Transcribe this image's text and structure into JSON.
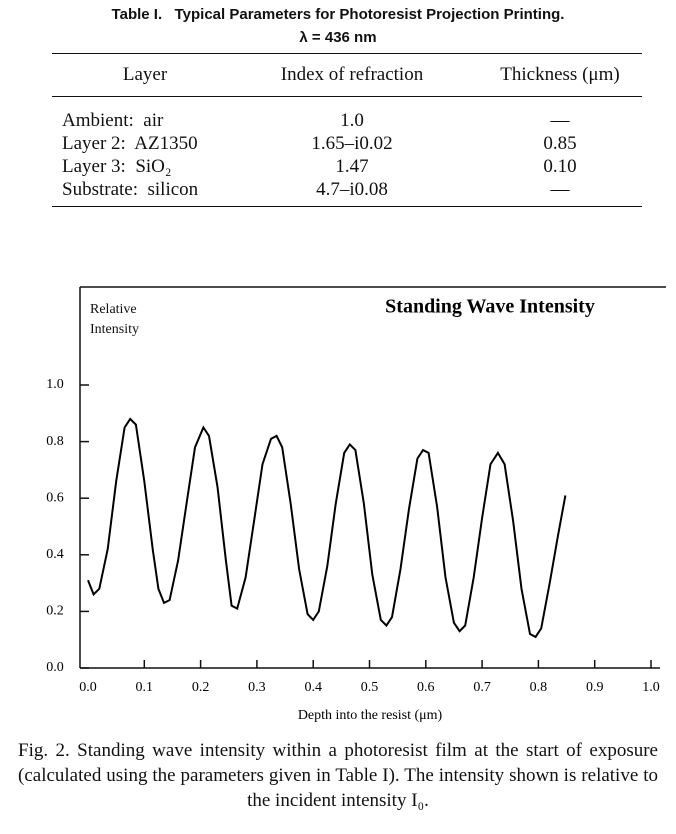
{
  "table": {
    "title": "Table I.   Typical Parameters for Photoresist Projection Printing.",
    "subtitle": "λ = 436 nm",
    "columns": [
      "Layer",
      "Index of refraction",
      "Thickness (μm)"
    ],
    "rows": [
      [
        "Ambient:  air",
        "1.0",
        "—"
      ],
      [
        "Layer 2:  AZ1350",
        "1.65–i0.02",
        "0.85"
      ],
      [
        "Layer 3:  SiO₂",
        "1.47",
        "0.10"
      ],
      [
        "Substrate:  silicon",
        "4.7–i0.08",
        "—"
      ]
    ]
  },
  "chart_data": {
    "type": "line",
    "title": "Standing Wave Intensity",
    "ylabel": "Relative Intensity",
    "xlabel": "Depth into the resist (μm)",
    "color": "#000000",
    "x": [
      0.0,
      0.01,
      0.02,
      0.035,
      0.05,
      0.065,
      0.075,
      0.085,
      0.1,
      0.115,
      0.125,
      0.135,
      0.145,
      0.16,
      0.175,
      0.19,
      0.205,
      0.215,
      0.23,
      0.245,
      0.255,
      0.265,
      0.28,
      0.295,
      0.31,
      0.325,
      0.335,
      0.345,
      0.36,
      0.375,
      0.39,
      0.4,
      0.41,
      0.425,
      0.44,
      0.455,
      0.465,
      0.475,
      0.49,
      0.505,
      0.52,
      0.53,
      0.54,
      0.555,
      0.57,
      0.585,
      0.595,
      0.605,
      0.62,
      0.635,
      0.65,
      0.66,
      0.67,
      0.685,
      0.7,
      0.715,
      0.728,
      0.74,
      0.755,
      0.77,
      0.785,
      0.795,
      0.805,
      0.82,
      0.835,
      0.848
    ],
    "values": [
      0.31,
      0.26,
      0.28,
      0.42,
      0.66,
      0.85,
      0.88,
      0.86,
      0.66,
      0.42,
      0.28,
      0.23,
      0.24,
      0.38,
      0.58,
      0.78,
      0.85,
      0.82,
      0.64,
      0.38,
      0.22,
      0.21,
      0.32,
      0.52,
      0.72,
      0.81,
      0.82,
      0.78,
      0.58,
      0.35,
      0.19,
      0.17,
      0.2,
      0.36,
      0.58,
      0.76,
      0.79,
      0.77,
      0.58,
      0.33,
      0.17,
      0.15,
      0.18,
      0.35,
      0.56,
      0.74,
      0.77,
      0.76,
      0.57,
      0.32,
      0.16,
      0.13,
      0.15,
      0.32,
      0.53,
      0.72,
      0.76,
      0.72,
      0.52,
      0.28,
      0.12,
      0.11,
      0.14,
      0.3,
      0.47,
      0.61
    ],
    "xlim": [
      0,
      1
    ],
    "ylim": [
      0,
      1
    ],
    "xticks": [
      {
        "value": 0,
        "label": "0.0"
      },
      0.1,
      0.2,
      0.3,
      0.4,
      0.5,
      0.6,
      0.7,
      0.8,
      0.9,
      {
        "value": 1,
        "label": "1.0"
      }
    ],
    "yticks": [
      {
        "value": 0,
        "label": "0.0"
      },
      0.2,
      0.4,
      0.6,
      0.8,
      {
        "value": 1,
        "label": "1.0"
      }
    ]
  },
  "caption": "Fig. 2.  Standing wave intensity within a photoresist film at the start of exposure (calculated using the parameters given in Table I). The intensity shown is relative to the incident intensity I₀."
}
